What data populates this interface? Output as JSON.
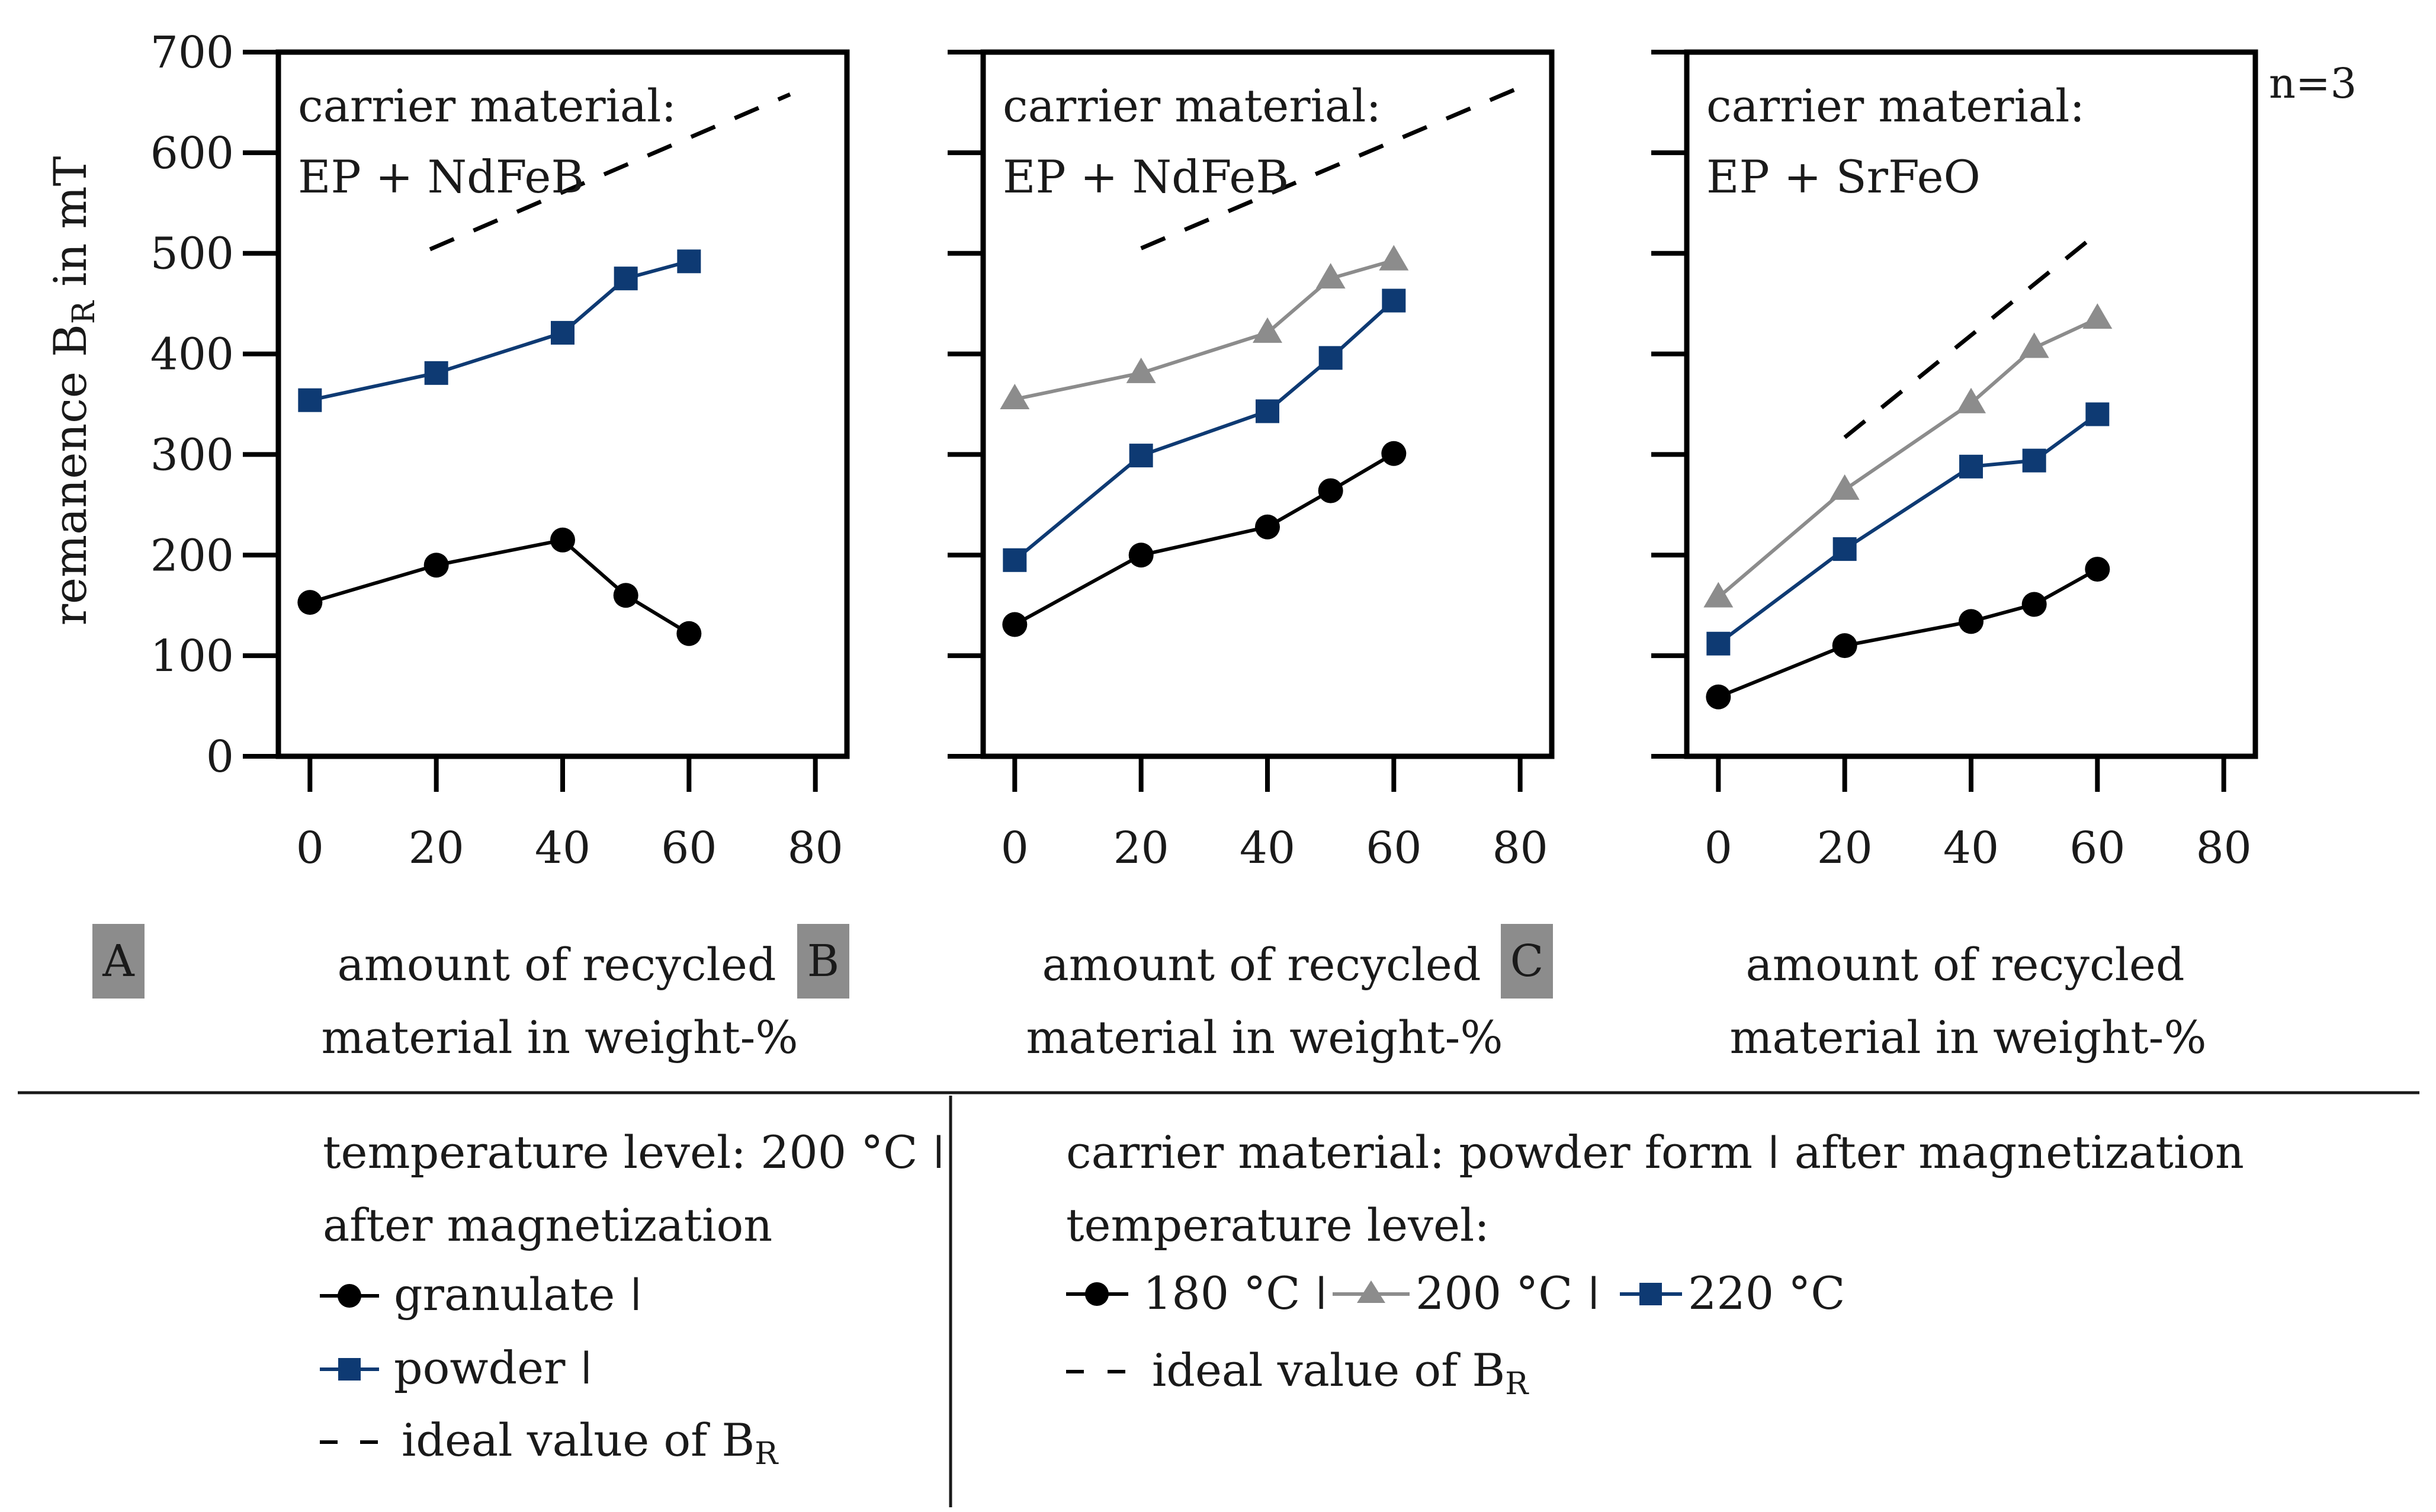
{
  "figure": {
    "y_axis_label": "remanence B",
    "y_axis_label_sub": "R",
    "y_axis_label_unit": " in mT",
    "n_note": "n=3",
    "colors": {
      "granulate": "#000000",
      "t200": "#8c8c8c",
      "t220": "#0e3a73",
      "ideal": "#000000",
      "panel_tag_bg": "#8c8c8c"
    }
  },
  "panels": [
    {
      "tag": "A",
      "carrier_line1": "carrier material:",
      "carrier_line2": "EP + NdFeB",
      "xlabel_line1": "amount of recycled",
      "xlabel_line2": "material in weight-%"
    },
    {
      "tag": "B",
      "carrier_line1": "carrier material:",
      "carrier_line2": "EP + NdFeB",
      "xlabel_line1": "amount of recycled",
      "xlabel_line2": "material in weight-%"
    },
    {
      "tag": "C",
      "carrier_line1": "carrier material:",
      "carrier_line2": "EP + SrFeO",
      "xlabel_line1": "amount of recycled",
      "xlabel_line2": "material in weight-%"
    }
  ],
  "legend_left": {
    "line1": "temperature level: 200 °C ǀ",
    "line2": "after magnetization",
    "granulate": "granulate ǀ",
    "powder": "powder ǀ",
    "ideal": "ideal value of B",
    "ideal_sub": "R"
  },
  "legend_right": {
    "line1": "carrier material: powder form ǀ after magnetization",
    "line2": "temperature level:",
    "t180": "180 °C ǀ",
    "t200": "200 °C ǀ",
    "t220": "220 °C",
    "ideal": "ideal value of B",
    "ideal_sub": "R"
  },
  "chart_data": [
    {
      "type": "line",
      "panel": "A",
      "title": "carrier material: EP + NdFeB",
      "xlabel": "amount of recycled material in weight-%",
      "ylabel": "remanence B_R in mT",
      "xlim": [
        -5,
        85
      ],
      "ylim": [
        0,
        700
      ],
      "xticks": [
        0,
        20,
        40,
        60,
        80
      ],
      "yticks": [
        0,
        100,
        200,
        300,
        400,
        500,
        600,
        700
      ],
      "series": [
        {
          "name": "granulate",
          "marker": "circle",
          "dashed": false,
          "x": [
            0,
            20,
            40,
            50,
            60
          ],
          "y": [
            153,
            190,
            215,
            160,
            122
          ]
        },
        {
          "name": "powder",
          "marker": "square",
          "dashed": false,
          "x": [
            0,
            20,
            40,
            50,
            60
          ],
          "y": [
            354,
            381,
            421,
            475,
            492
          ]
        },
        {
          "name": "ideal value of B_R",
          "marker": "none",
          "dashed": true,
          "x": [
            19,
            76
          ],
          "y": [
            504,
            658
          ]
        }
      ]
    },
    {
      "type": "line",
      "panel": "B",
      "title": "carrier material: EP + NdFeB",
      "xlabel": "amount of recycled material in weight-%",
      "ylabel": "remanence B_R in mT",
      "xlim": [
        -5,
        85
      ],
      "ylim": [
        0,
        700
      ],
      "xticks": [
        0,
        20,
        40,
        60,
        80
      ],
      "yticks": [
        0,
        100,
        200,
        300,
        400,
        500,
        600,
        700
      ],
      "series": [
        {
          "name": "180 °C",
          "marker": "circle",
          "dashed": false,
          "x": [
            0,
            20,
            40,
            50,
            60
          ],
          "y": [
            131,
            200,
            228,
            264,
            301
          ]
        },
        {
          "name": "200 °C",
          "marker": "triangle",
          "dashed": false,
          "x": [
            0,
            20,
            40,
            50,
            60
          ],
          "y": [
            355,
            381,
            421,
            475,
            493
          ]
        },
        {
          "name": "220 °C",
          "marker": "square",
          "dashed": false,
          "x": [
            0,
            20,
            40,
            50,
            60
          ],
          "y": [
            195,
            299,
            343,
            396,
            453
          ]
        },
        {
          "name": "ideal value of B_R",
          "marker": "none",
          "dashed": true,
          "x": [
            20,
            80
          ],
          "y": [
            505,
            665
          ]
        }
      ]
    },
    {
      "type": "line",
      "panel": "C",
      "title": "carrier material: EP + SrFeO",
      "xlabel": "amount of recycled material in weight-%",
      "ylabel": "remanence B_R in mT",
      "xlim": [
        -5,
        85
      ],
      "ylim": [
        0,
        700
      ],
      "xticks": [
        0,
        20,
        40,
        60,
        80
      ],
      "yticks": [
        0,
        100,
        200,
        300,
        400,
        500,
        600,
        700
      ],
      "series": [
        {
          "name": "180 °C",
          "marker": "circle",
          "dashed": false,
          "x": [
            0,
            20,
            40,
            50,
            60
          ],
          "y": [
            59,
            110,
            134,
            151,
            186
          ]
        },
        {
          "name": "200 °C",
          "marker": "triangle",
          "dashed": false,
          "x": [
            0,
            20,
            40,
            50,
            60
          ],
          "y": [
            158,
            265,
            351,
            406,
            435
          ]
        },
        {
          "name": "220 °C",
          "marker": "square",
          "dashed": false,
          "x": [
            0,
            20,
            40,
            50,
            60
          ],
          "y": [
            112,
            206,
            288,
            294,
            340
          ]
        },
        {
          "name": "ideal value of B_R",
          "marker": "none",
          "dashed": true,
          "x": [
            20,
            60
          ],
          "y": [
            317,
            520
          ]
        }
      ]
    }
  ]
}
